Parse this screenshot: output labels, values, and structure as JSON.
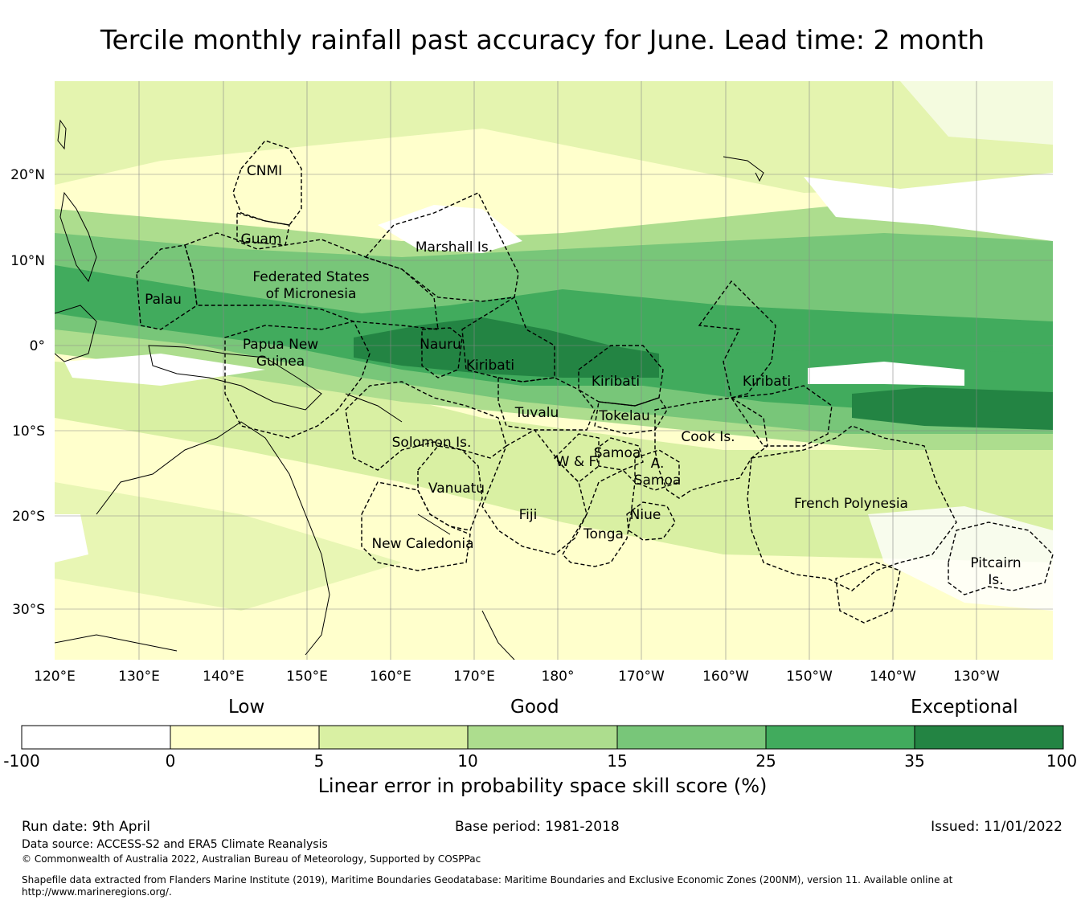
{
  "title": "Tercile monthly rainfall past accuracy for June. Lead time: 2 month",
  "map": {
    "lat_labels": [
      "20°N",
      "10°N",
      "0°",
      "10°S",
      "20°S",
      "30°S"
    ],
    "lon_labels": [
      "120°E",
      "130°E",
      "140°E",
      "150°E",
      "160°E",
      "170°E",
      "180°",
      "170°W",
      "160°W",
      "150°W",
      "140°W",
      "130°W"
    ],
    "regions": [
      "CNMI",
      "Guam",
      "Marshall Is.",
      "Palau",
      "Federated States",
      "of Micronesia",
      "Papua New",
      "Guinea",
      "Nauru",
      "Kiribati",
      "Kiribati",
      "Kiribati",
      "Tuvalu",
      "Tokelau",
      "Solomon Is.",
      "Samoa",
      "W & F",
      "A.",
      "Samoa",
      "Cook Is.",
      "Vanuatu",
      "Fiji",
      "Niue",
      "Tonga",
      "French Polynesia",
      "New Caledonia",
      "Pitcairn",
      "Is."
    ]
  },
  "colorbar": {
    "category_labels": [
      "Low",
      "Good",
      "Exceptional"
    ],
    "ticks": [
      "-100",
      "0",
      "5",
      "10",
      "15",
      "25",
      "35",
      "100"
    ],
    "colors": [
      "#ffffff",
      "#ffffcc",
      "#d9f0a3",
      "#addd8e",
      "#78c679",
      "#41ab5d",
      "#238443"
    ],
    "axis_label": "Linear error in probability space skill score (%)"
  },
  "footer": {
    "run_date": "Run date: 9th April",
    "base_period": "Base period: 1981-2018",
    "issued": "Issued: 11/01/2022",
    "data_source": "Data source: ACCESS-S2 and ERA5 Climate Reanalysis",
    "copyright": "© Commonwealth of Australia 2022, Australian Bureau of Meteorology, Supported by COSPPac",
    "shapefile_line1": "Shapefile data extracted from Flanders Marine Institute (2019), Maritime Boundaries Geodatabase: Maritime Boundaries and Exclusive Economic Zones (200NM), version 11. Available online at",
    "shapefile_line2": "http://www.marineregions.org/."
  }
}
